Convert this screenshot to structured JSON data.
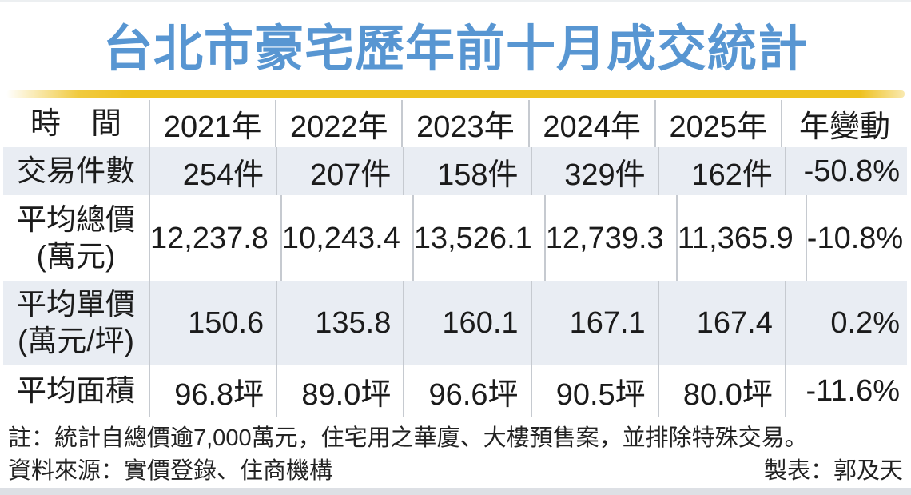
{
  "title": "台北市豪宅歷年前十月成交統計",
  "colors": {
    "title_blue": "#5896d2",
    "underline_gold": "#eec11e",
    "alt_row_bg": "#e9edf3",
    "divider_gray": "#c6cad0",
    "text_dark": "#1b1b1b",
    "bottom_strip": "#dde0e5"
  },
  "chart_data": {
    "type": "table",
    "title": "台北市豪宅歷年前十月成交統計",
    "columns": [
      "時　間",
      "2021年",
      "2022年",
      "2023年",
      "2024年",
      "2025年",
      "年變動"
    ],
    "rows": [
      {
        "label": "交易件數",
        "label_lines": [
          "交易件數"
        ],
        "values": [
          "254件",
          "207件",
          "158件",
          "329件",
          "162件",
          "-50.8%"
        ]
      },
      {
        "label": "平均總價(萬元)",
        "label_lines": [
          "平均總價",
          "(萬元)"
        ],
        "values": [
          "12,237.8",
          "10,243.4",
          "13,526.1",
          "12,739.3",
          "11,365.9",
          "-10.8%"
        ]
      },
      {
        "label": "平均單價(萬元/坪)",
        "label_lines": [
          "平均單價",
          "(萬元/坪)"
        ],
        "values": [
          "150.6",
          "135.8",
          "160.1",
          "167.1",
          "167.4",
          "0.2%"
        ]
      },
      {
        "label": "平均面積",
        "label_lines": [
          "平均面積"
        ],
        "values": [
          "96.8坪",
          "89.0坪",
          "96.6坪",
          "90.5坪",
          "80.0坪",
          "-11.6%"
        ]
      }
    ]
  },
  "notes": {
    "note": "註：統計自總價逾7,000萬元，住宅用之華廈、大樓預售案，並排除特殊交易。",
    "source": "資料來源：實價登錄、住商機構",
    "credit": "製表：郭及天"
  }
}
